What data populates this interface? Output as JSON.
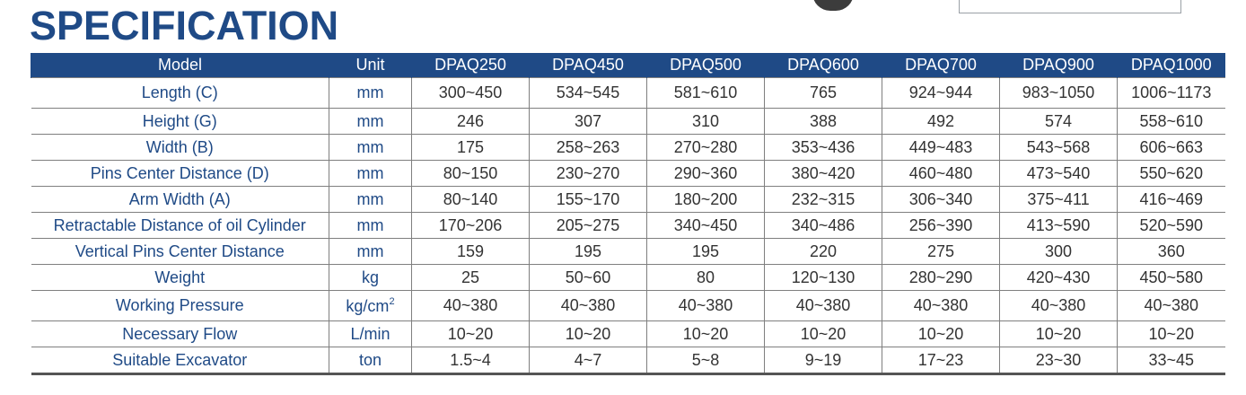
{
  "title": "SPECIFICATION",
  "table": {
    "headers": [
      "Model",
      "Unit",
      "DPAQ250",
      "DPAQ450",
      "DPAQ500",
      "DPAQ600",
      "DPAQ700",
      "DPAQ900",
      "DPAQ1000"
    ],
    "rows": [
      {
        "label": "Length (C)",
        "unit": "mm",
        "values": [
          "300~450",
          "534~545",
          "581~610",
          "765",
          "924~944",
          "983~1050",
          "1006~1173"
        ]
      },
      {
        "label": "Height (G)",
        "unit": "mm",
        "values": [
          "246",
          "307",
          "310",
          "388",
          "492",
          "574",
          "558~610"
        ]
      },
      {
        "label": "Width (B)",
        "unit": "mm",
        "values": [
          "175",
          "258~263",
          "270~280",
          "353~436",
          "449~483",
          "543~568",
          "606~663"
        ]
      },
      {
        "label": "Pins Center Distance (D)",
        "unit": "mm",
        "values": [
          "80~150",
          "230~270",
          "290~360",
          "380~420",
          "460~480",
          "473~540",
          "550~620"
        ]
      },
      {
        "label": "Arm Width (A)",
        "unit": "mm",
        "values": [
          "80~140",
          "155~170",
          "180~200",
          "232~315",
          "306~340",
          "375~411",
          "416~469"
        ]
      },
      {
        "label": "Retractable  Distance of oil Cylinder",
        "unit": "mm",
        "values": [
          "170~206",
          "205~275",
          "340~450",
          "340~486",
          "256~390",
          "413~590",
          "520~590"
        ]
      },
      {
        "label": "Vertical Pins Center Distance",
        "unit": "mm",
        "values": [
          "159",
          "195",
          "195",
          "220",
          "275",
          "300",
          "360"
        ]
      },
      {
        "label": "Weight",
        "unit": "kg",
        "values": [
          "25",
          "50~60",
          "80",
          "120~130",
          "280~290",
          "420~430",
          "450~580"
        ]
      },
      {
        "label": "Working Pressure",
        "unit": "kg/cm",
        "unit_sup": "2",
        "values": [
          "40~380",
          "40~380",
          "40~380",
          "40~380",
          "40~380",
          "40~380",
          "40~380"
        ]
      },
      {
        "label": "Necessary Flow",
        "unit": "L/min",
        "values": [
          "10~20",
          "10~20",
          "10~20",
          "10~20",
          "10~20",
          "10~20",
          "10~20"
        ]
      },
      {
        "label": "Suitable Excavator",
        "unit": "ton",
        "values": [
          "1.5~4",
          "4~7",
          "5~8",
          "9~19",
          "17~23",
          "23~30",
          "33~45"
        ]
      }
    ]
  },
  "colors": {
    "header_bg": "#1f4a86",
    "label_text": "#1f4a86",
    "value_text": "#333333"
  }
}
